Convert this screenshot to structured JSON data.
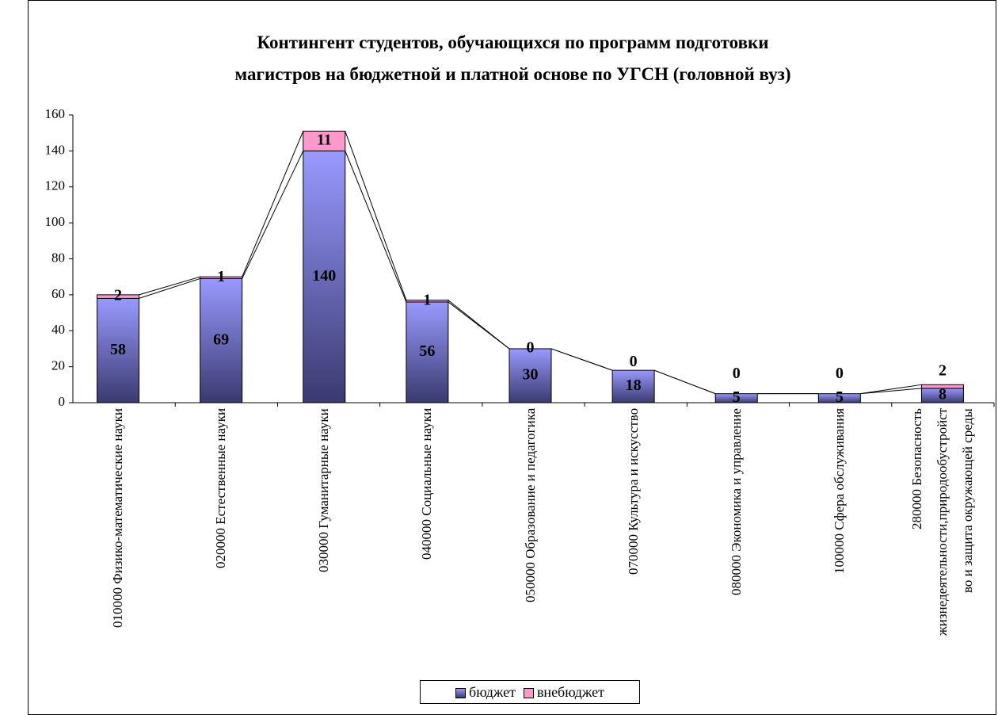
{
  "chart_data": {
    "type": "bar",
    "stacked": true,
    "title": "Контингент студентов, обучающихся по программ подготовки\nмагистров на бюджетной и платной основе по УГСН (головной вуз)",
    "categories": [
      "010000 Физико-математические науки",
      "020000 Естественные науки",
      "030000 Гуманитарные науки",
      "040000 Социальные науки",
      "050000 Образование и педагогика",
      "070000 Культура и искусство",
      "080000 Экономика и управление",
      "100000 Сфера обслуживания",
      "280000 Безопасность\nжизнедеятельности,природообустройст\nво и защита окружающей среды"
    ],
    "series": [
      {
        "name": "бюджет",
        "color": "#8080e0",
        "values": [
          58,
          69,
          140,
          56,
          30,
          18,
          5,
          5,
          8
        ]
      },
      {
        "name": "внебюджет",
        "color": "#ff99cc",
        "values": [
          2,
          1,
          11,
          1,
          0,
          0,
          0,
          0,
          2
        ]
      }
    ],
    "ylim": [
      0,
      160
    ],
    "yticks": [
      0,
      20,
      40,
      60,
      80,
      100,
      120,
      140,
      160
    ],
    "legend": "bottom"
  }
}
